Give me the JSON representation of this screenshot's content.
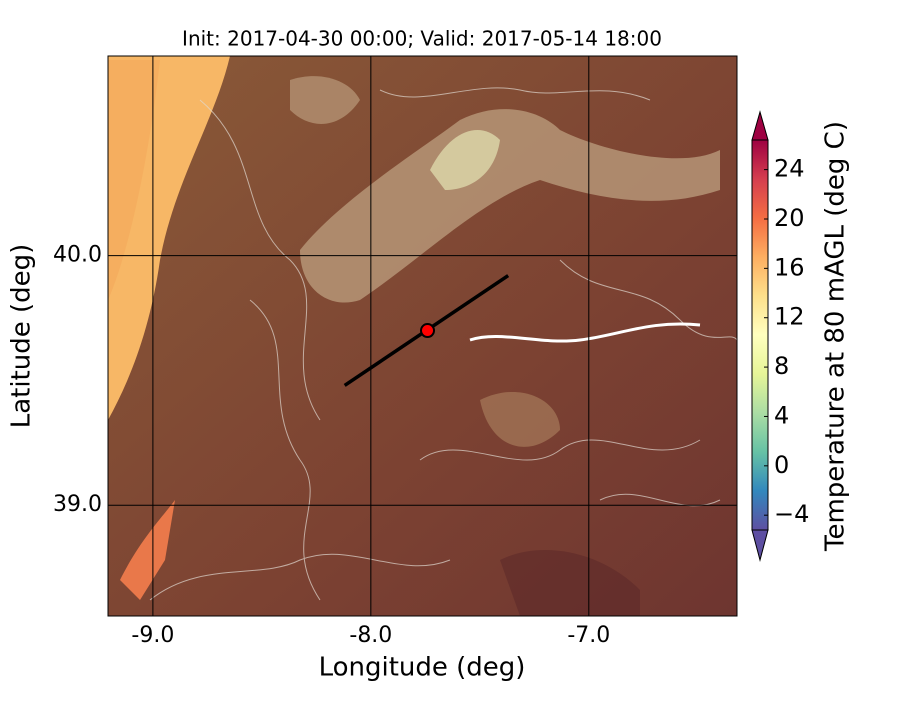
{
  "chart_data": {
    "type": "map",
    "title": "Init: 2017-04-30 00:00; Valid: 2017-05-14 18:00",
    "x_label": "Longitude (deg)",
    "y_label": "Latitude (deg)",
    "xlim": [
      -9.206,
      -6.32
    ],
    "ylim": [
      38.556,
      40.8
    ],
    "xticks": [
      {
        "value": -9,
        "label": "-9.0"
      },
      {
        "value": -8,
        "label": "-8.0"
      },
      {
        "value": -7,
        "label": "-7.0"
      }
    ],
    "yticks": [
      {
        "value": 39,
        "label": "39.0"
      },
      {
        "value": 40,
        "label": "40.0"
      }
    ],
    "grid": true,
    "cross_section": {
      "lon": [
        -8.12,
        -7.37
      ],
      "lat": [
        39.48,
        39.92
      ],
      "color": "#000000"
    },
    "point": {
      "lon": -7.74,
      "lat": 39.7,
      "color": "#ff0000"
    },
    "colorbar": {
      "label": "Temperature at 80 mAGL (deg C)",
      "clim": [
        -5.2,
        26.4
      ],
      "ticks": [
        {
          "value": -4,
          "label": "−4"
        },
        0,
        4,
        8,
        12,
        16,
        20,
        24
      ]
    }
  }
}
